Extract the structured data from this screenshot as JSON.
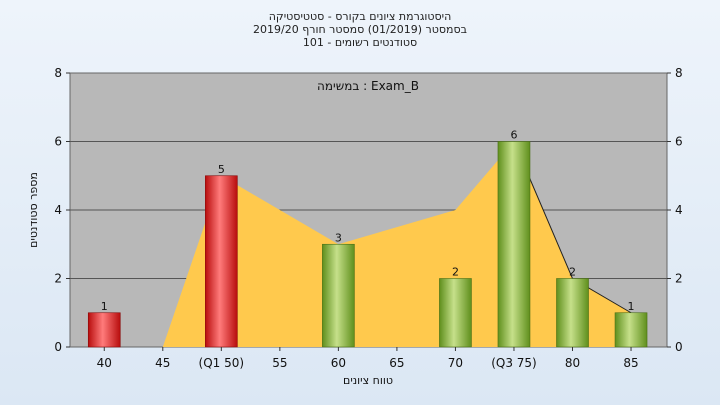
{
  "header": {
    "title_line1": "היסטוגרמת ציונים בקורס - סטטיסטיקה",
    "title_line2": "בסמסטר  (01/2019)  סמסטר חורף 2019/20",
    "title_line3": "סטודנטים רשומים - 101"
  },
  "chart_data": {
    "type": "bar",
    "categories": [
      "40",
      "45",
      "(Q1 50)",
      "55",
      "60",
      "65",
      "70",
      "(Q3 75)",
      "80",
      "85"
    ],
    "series": [
      {
        "values": [
          1,
          0,
          5,
          0,
          3,
          0,
          2,
          6,
          2,
          1
        ]
      }
    ],
    "bar_colors": [
      "red",
      null,
      "red",
      null,
      "green",
      null,
      "green",
      "green",
      "green",
      "green"
    ],
    "area_values": [
      0,
      0,
      5,
      4,
      3,
      3.5,
      4,
      6,
      2,
      1
    ],
    "annotation": "במשימה : Exam_B",
    "xlabel": "טווח ציונים",
    "ylabel": "מספר סטודנטים",
    "ylim": [
      0,
      8
    ],
    "yticks": [
      0,
      2,
      4,
      6,
      8
    ],
    "grid": true,
    "colors": {
      "plot_bg": "#b8b8b8",
      "area": "#ffc94d",
      "red_bar_light": "#ff7b7b",
      "red_bar_dark": "#b80d0d",
      "green_bar_light": "#c6e08a",
      "green_bar_dark": "#5f8f1c"
    }
  }
}
